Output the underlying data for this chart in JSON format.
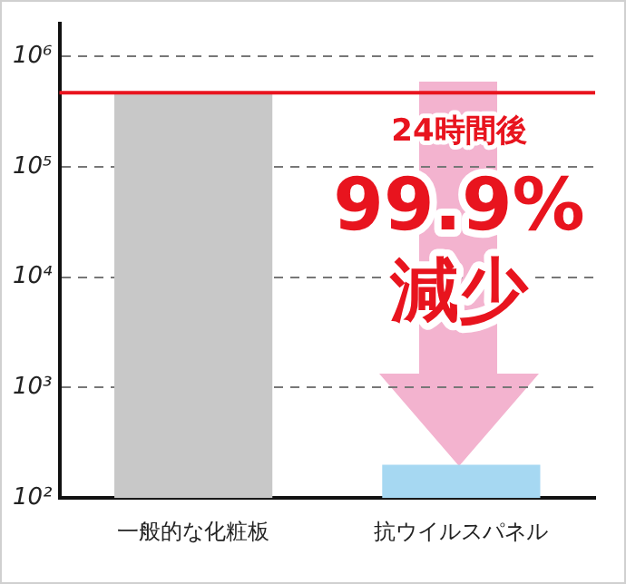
{
  "chart_data": {
    "type": "bar",
    "categories": [
      "一般的な化粧板",
      "抗ウイルスパネル"
    ],
    "values": [
      470000,
      200
    ],
    "colors": [
      "#c8c8c8",
      "#a6d8f2"
    ],
    "log": true,
    "ylim": [
      100,
      2000000
    ],
    "yticks": [
      {
        "value": 100,
        "label": "10²"
      },
      {
        "value": 1000,
        "label": "10³"
      },
      {
        "value": 10000,
        "label": "10⁴"
      },
      {
        "value": 100000,
        "label": "10⁵"
      },
      {
        "value": 1000000,
        "label": "10⁶"
      }
    ],
    "grid": "y",
    "legend": false,
    "ref_lines": [
      {
        "axis": "y",
        "value": 470000,
        "color": "#e8141e"
      }
    ],
    "annotations": [
      "24時間後",
      "99.9%",
      "減少"
    ]
  }
}
